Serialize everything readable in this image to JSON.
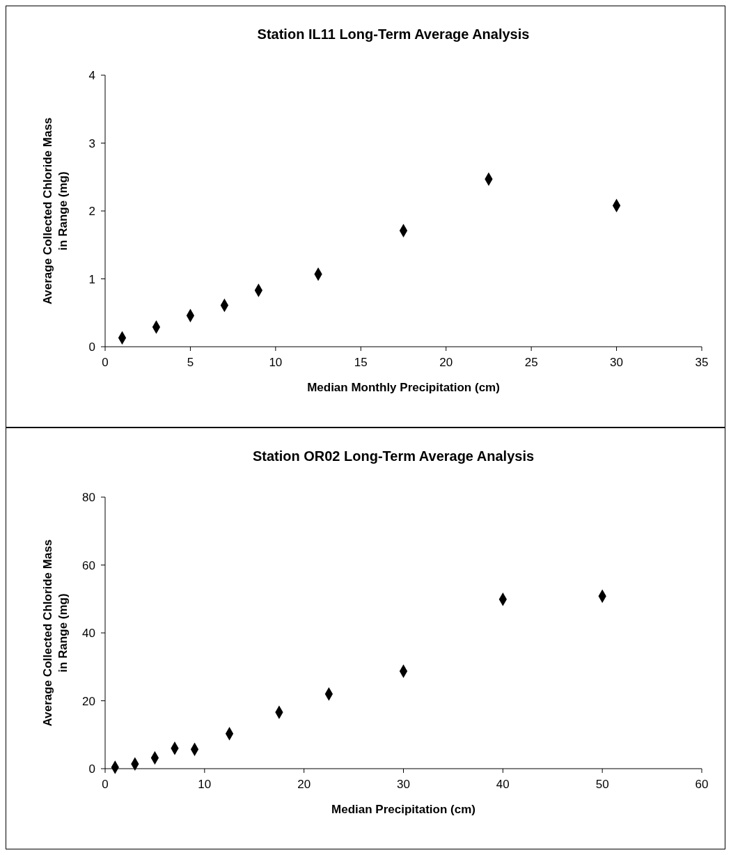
{
  "chart_data": [
    {
      "type": "scatter",
      "title": "Station IL11 Long-Term Average Analysis",
      "xlabel": "Median Monthly Precipitation (cm)",
      "ylabel": "Average Collected Chloride Mass in Range (mg)",
      "x": [
        1,
        3,
        5,
        7,
        9,
        12.5,
        17.5,
        22.5,
        30
      ],
      "series": [
        {
          "color": "#000000",
          "values": [
            0.13,
            0.29,
            0.46,
            0.61,
            0.83,
            1.07,
            1.71,
            2.47,
            2.08
          ]
        }
      ],
      "xlim": [
        0,
        35
      ],
      "xticks": [
        0,
        5,
        10,
        15,
        20,
        25,
        30,
        35
      ],
      "ylim": [
        0,
        4
      ],
      "yticks": [
        0,
        1,
        2,
        3,
        4
      ],
      "marker": "diamond",
      "grid": false
    },
    {
      "type": "scatter",
      "title": "Station OR02 Long-Term Average Analysis",
      "xlabel": "Median Precipitation (cm)",
      "ylabel": "Average Collected Chloride Mass in Range (mg)",
      "x": [
        1,
        3,
        5,
        7,
        9,
        12.5,
        17.5,
        22.5,
        30,
        40,
        50
      ],
      "series": [
        {
          "color": "#000000",
          "values": [
            0.4,
            1.4,
            3.2,
            6.0,
            5.7,
            10.3,
            16.6,
            22.0,
            28.7,
            49.9,
            50.8
          ]
        }
      ],
      "xlim": [
        0,
        60
      ],
      "xticks": [
        0,
        10,
        20,
        30,
        40,
        50,
        60
      ],
      "ylim": [
        0,
        80
      ],
      "yticks": [
        0,
        20,
        40,
        60,
        80
      ],
      "marker": "diamond",
      "grid": false
    }
  ]
}
